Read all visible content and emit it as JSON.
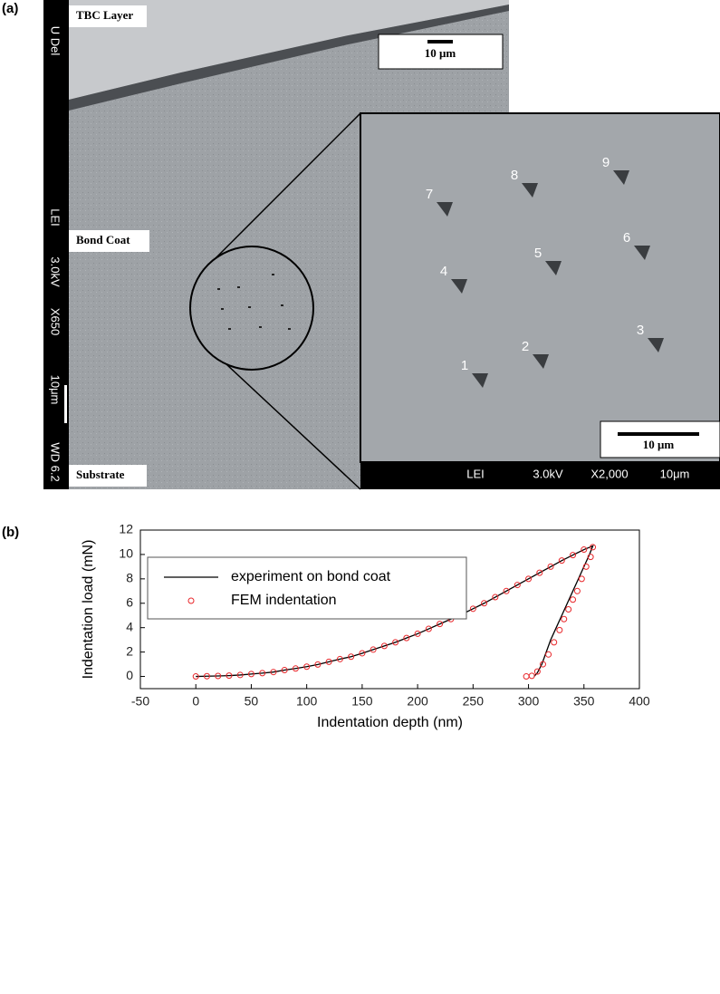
{
  "panel_a": {
    "label": "(a)",
    "overview": {
      "layer_top": "TBC Layer",
      "layer_mid": "Bond Coat",
      "layer_bottom": "Substrate",
      "scale": "10 μm",
      "sidebar": [
        "U Del",
        "LEI",
        "3.0kV",
        "X650",
        "10μm",
        "WD 6.2"
      ]
    },
    "inset": {
      "indents": [
        "1",
        "2",
        "3",
        "4",
        "5",
        "6",
        "7",
        "8",
        "9"
      ],
      "scale": "10 μm",
      "footer": [
        "LEI",
        "3.0kV",
        "X2,000",
        "10μm"
      ]
    }
  },
  "panel_b": {
    "label": "(b)"
  },
  "chart_data": {
    "type": "line",
    "x_label": "Indentation depth (nm)",
    "y_label": "Indentation load (mN)",
    "xlim": [
      -50,
      400
    ],
    "xticks": [
      -50,
      0,
      50,
      100,
      150,
      200,
      250,
      300,
      350,
      400
    ],
    "ylim": [
      -1,
      12
    ],
    "yticks": [
      0,
      2,
      4,
      6,
      8,
      10,
      12
    ],
    "legend": "upper left",
    "series": [
      {
        "name": "experiment on bond coat",
        "color": "#000000",
        "style": "line",
        "x": [
          0,
          10,
          20,
          30,
          40,
          50,
          60,
          70,
          80,
          90,
          100,
          110,
          120,
          130,
          140,
          150,
          160,
          170,
          180,
          190,
          200,
          210,
          220,
          230,
          240,
          250,
          260,
          270,
          280,
          290,
          300,
          310,
          320,
          330,
          340,
          350,
          358,
          355,
          350,
          345,
          340,
          335,
          330,
          325,
          320,
          316,
          312,
          308,
          305
        ],
        "values": [
          0,
          0.02,
          0.04,
          0.07,
          0.12,
          0.2,
          0.27,
          0.36,
          0.52,
          0.65,
          0.8,
          0.98,
          1.2,
          1.42,
          1.62,
          1.9,
          2.2,
          2.5,
          2.8,
          3.15,
          3.5,
          3.9,
          4.3,
          4.7,
          5.1,
          5.55,
          6.0,
          6.5,
          7.0,
          7.5,
          8.0,
          8.5,
          9.0,
          9.5,
          9.95,
          10.4,
          10.7,
          10.0,
          9.0,
          8.0,
          7.0,
          6.0,
          5.0,
          4.0,
          3.0,
          2.0,
          1.0,
          0.3,
          0
        ]
      },
      {
        "name": "FEM indentation",
        "color": "#e8262a",
        "style": "markers",
        "x": [
          0,
          10,
          20,
          30,
          40,
          50,
          60,
          70,
          80,
          90,
          100,
          110,
          120,
          130,
          140,
          150,
          160,
          170,
          180,
          190,
          200,
          210,
          220,
          230,
          240,
          250,
          260,
          270,
          280,
          290,
          300,
          310,
          320,
          330,
          340,
          350,
          358,
          356,
          352,
          348,
          344,
          340,
          336,
          332,
          328,
          323,
          318,
          313,
          308,
          303,
          298
        ],
        "values": [
          0,
          0.02,
          0.04,
          0.07,
          0.12,
          0.2,
          0.27,
          0.36,
          0.52,
          0.65,
          0.8,
          0.98,
          1.2,
          1.42,
          1.62,
          1.9,
          2.2,
          2.5,
          2.8,
          3.15,
          3.5,
          3.9,
          4.3,
          4.7,
          5.1,
          5.55,
          6.0,
          6.5,
          7.0,
          7.5,
          8.0,
          8.5,
          9.0,
          9.5,
          9.95,
          10.4,
          10.6,
          9.8,
          9.0,
          8.0,
          7.0,
          6.3,
          5.5,
          4.7,
          3.8,
          2.8,
          1.8,
          1.0,
          0.4,
          0.05,
          0
        ]
      }
    ]
  }
}
